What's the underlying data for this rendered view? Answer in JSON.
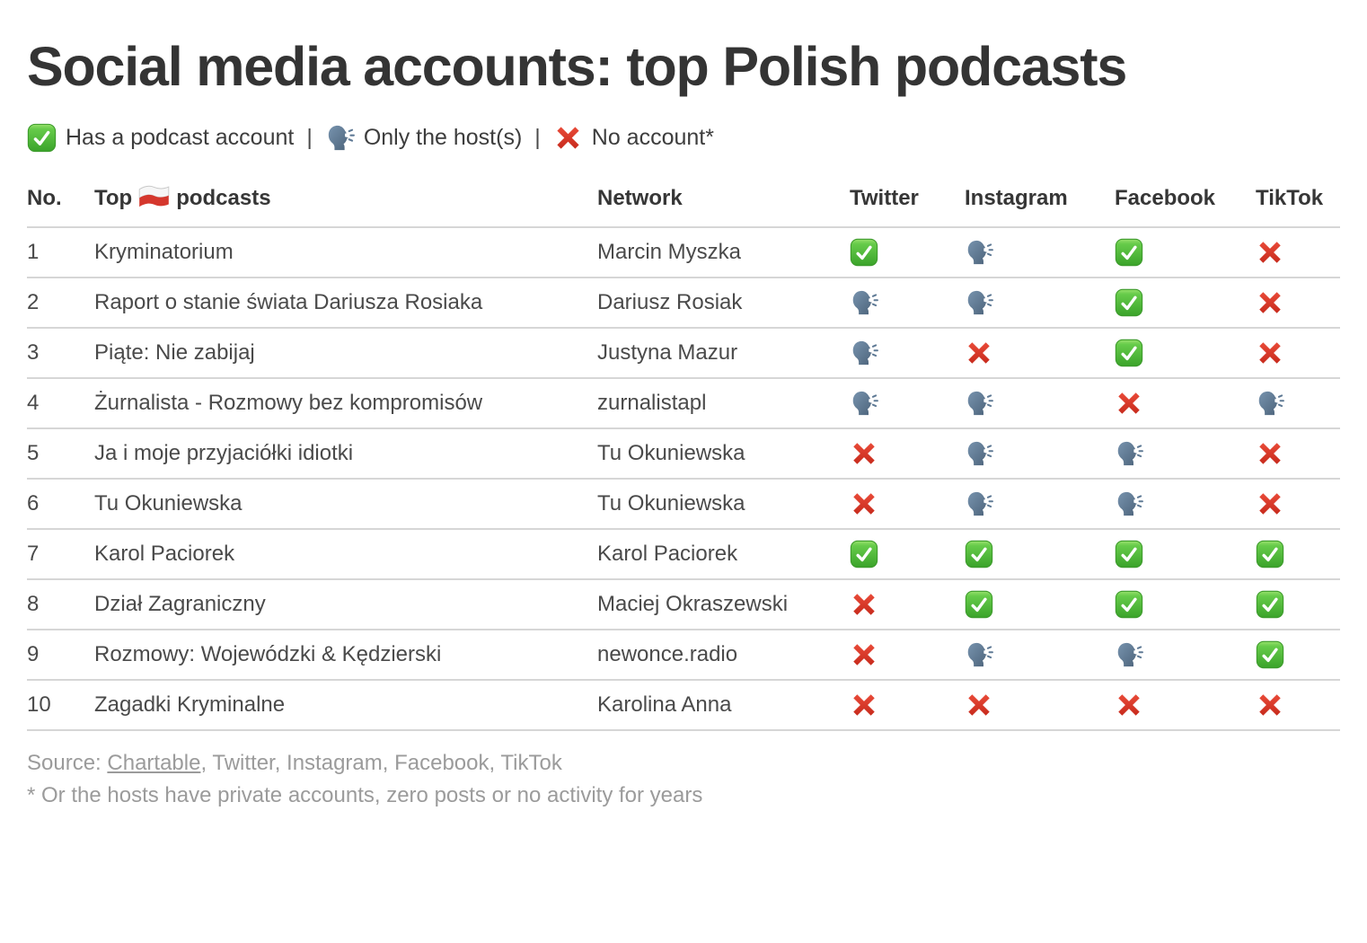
{
  "title": "Social media accounts: top Polish podcasts",
  "legend": {
    "separator": "|",
    "items": [
      {
        "icon": "check",
        "label": "Has a podcast account"
      },
      {
        "icon": "host",
        "label": "Only the host(s)"
      },
      {
        "icon": "cross",
        "label": "No account*"
      }
    ]
  },
  "table": {
    "header": {
      "no": "No.",
      "podcasts_pre": "Top",
      "podcasts_post": "podcasts",
      "network": "Network",
      "twitter": "Twitter",
      "instagram": "Instagram",
      "facebook": "Facebook",
      "tiktok": "TikTok"
    },
    "rows": [
      {
        "no": "1",
        "podcast": "Kryminatorium",
        "network": "Marcin Myszka",
        "twitter": "check",
        "instagram": "host",
        "facebook": "check",
        "tiktok": "cross"
      },
      {
        "no": "2",
        "podcast": "Raport o stanie świata Dariusza Rosiaka",
        "network": "Dariusz Rosiak",
        "twitter": "host",
        "instagram": "host",
        "facebook": "check",
        "tiktok": "cross"
      },
      {
        "no": "3",
        "podcast": "Piąte: Nie zabijaj",
        "network": "Justyna Mazur",
        "twitter": "host",
        "instagram": "cross",
        "facebook": "check",
        "tiktok": "cross"
      },
      {
        "no": "4",
        "podcast": "Żurnalista - Rozmowy bez kompromisów",
        "network": "zurnalistapl",
        "twitter": "host",
        "instagram": "host",
        "facebook": "cross",
        "tiktok": "host"
      },
      {
        "no": "5",
        "podcast": "Ja i moje przyjaciółki idiotki",
        "network": "Tu Okuniewska",
        "twitter": "cross",
        "instagram": "host",
        "facebook": "host",
        "tiktok": "cross"
      },
      {
        "no": "6",
        "podcast": "Tu Okuniewska",
        "network": "Tu Okuniewska",
        "twitter": "cross",
        "instagram": "host",
        "facebook": "host",
        "tiktok": "cross"
      },
      {
        "no": "7",
        "podcast": "Karol Paciorek",
        "network": "Karol Paciorek",
        "twitter": "check",
        "instagram": "check",
        "facebook": "check",
        "tiktok": "check"
      },
      {
        "no": "8",
        "podcast": "Dział Zagraniczny",
        "network": "Maciej Okraszewski",
        "twitter": "cross",
        "instagram": "check",
        "facebook": "check",
        "tiktok": "check"
      },
      {
        "no": "9",
        "podcast": "Rozmowy: Wojewódzki & Kędzierski",
        "network": "newonce.radio",
        "twitter": "cross",
        "instagram": "host",
        "facebook": "host",
        "tiktok": "check"
      },
      {
        "no": "10",
        "podcast": "Zagadki Kryminalne",
        "network": "Karolina Anna",
        "twitter": "cross",
        "instagram": "cross",
        "facebook": "cross",
        "tiktok": "cross"
      }
    ]
  },
  "chart_data": {
    "type": "table",
    "title": "Social media accounts: top Polish podcasts",
    "columns": [
      "No.",
      "Top 🇵🇱 podcasts",
      "Network",
      "Twitter",
      "Instagram",
      "Facebook",
      "TikTok"
    ],
    "status_meanings": {
      "check": "Has a podcast account",
      "host": "Only the host(s)",
      "cross": "No account*"
    },
    "rows": [
      [
        "1",
        "Kryminatorium",
        "Marcin Myszka",
        "check",
        "host",
        "check",
        "cross"
      ],
      [
        "2",
        "Raport o stanie świata Dariusza Rosiaka",
        "Dariusz Rosiak",
        "host",
        "host",
        "check",
        "cross"
      ],
      [
        "3",
        "Piąte: Nie zabijaj",
        "Justyna Mazur",
        "host",
        "cross",
        "check",
        "cross"
      ],
      [
        "4",
        "Żurnalista - Rozmowy bez kompromisów",
        "zurnalistapl",
        "host",
        "host",
        "cross",
        "host"
      ],
      [
        "5",
        "Ja i moje przyjaciółki idiotki",
        "Tu Okuniewska",
        "cross",
        "host",
        "host",
        "cross"
      ],
      [
        "6",
        "Tu Okuniewska",
        "Tu Okuniewska",
        "cross",
        "host",
        "host",
        "cross"
      ],
      [
        "7",
        "Karol Paciorek",
        "Karol Paciorek",
        "check",
        "check",
        "check",
        "check"
      ],
      [
        "8",
        "Dział Zagraniczny",
        "Maciej Okraszewski",
        "cross",
        "check",
        "check",
        "check"
      ],
      [
        "9",
        "Rozmowy: Wojewódzki & Kędzierski",
        "newonce.radio",
        "cross",
        "host",
        "host",
        "check"
      ],
      [
        "10",
        "Zagadki Kryminalne",
        "Karolina Anna",
        "cross",
        "cross",
        "cross",
        "cross"
      ]
    ]
  },
  "footer": {
    "source_prefix": "Source: ",
    "source_link": "Chartable",
    "source_rest": ", Twitter, Instagram, Facebook, TikTok",
    "footnote": "* Or the hosts have private accounts, zero posts or no activity for years"
  },
  "colors": {
    "title_text": "#343434",
    "body_text": "#4a4a4a",
    "muted_text": "#9b9b9b",
    "row_line": "#d6d6d6",
    "check_green": "#4caf39",
    "host_blue": "#5f7a95",
    "cross_red": "#d8352b",
    "flag_white": "#f6f6f6",
    "flag_red": "#d5372d"
  }
}
